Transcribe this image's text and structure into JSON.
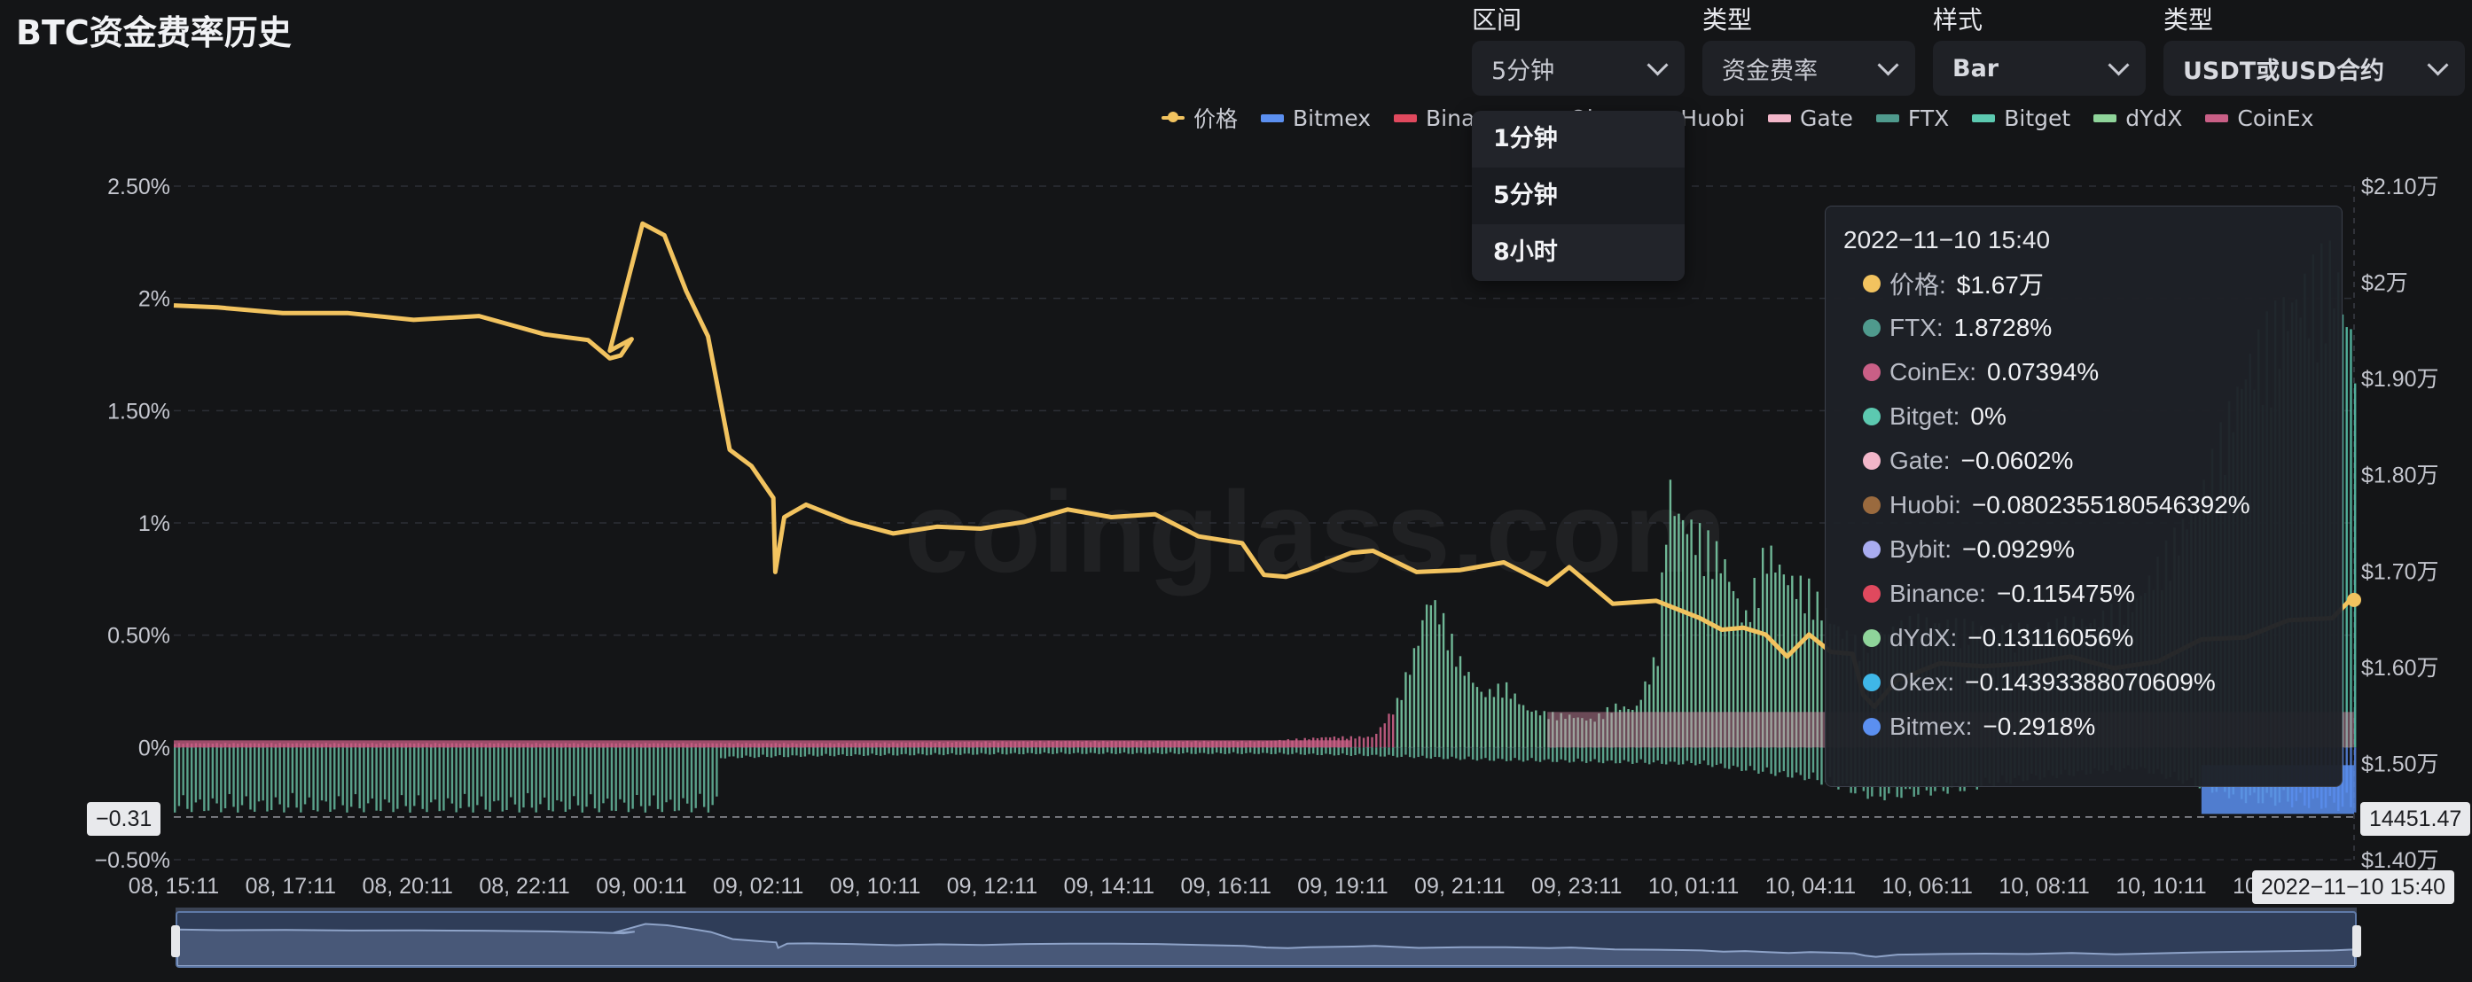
{
  "title": "BTC资金费率历史",
  "controls": [
    {
      "label": "区间",
      "value": "5分钟"
    },
    {
      "label": "类型",
      "value": "资金费率"
    },
    {
      "label": "样式",
      "value": "Bar"
    },
    {
      "label": "类型",
      "value": "USDT或USD合约"
    }
  ],
  "interval_options": [
    "1分钟",
    "5分钟",
    "8小时"
  ],
  "interval_selected_index": 1,
  "watermark": "coinglass.com",
  "legend": [
    {
      "name": "价格",
      "color": "#f2c35f",
      "kind": "line"
    },
    {
      "name": "Bitmex",
      "color": "#5b8ff0",
      "kind": "bar"
    },
    {
      "name": "Binance",
      "color": "#e0495e",
      "kind": "bar"
    },
    {
      "name": "Okex",
      "color": "#3fb7e8",
      "kind": "bar"
    },
    {
      "name": "Huobi",
      "color": "#9a6a3e",
      "kind": "bar"
    },
    {
      "name": "Gate",
      "color": "#f2b6c9",
      "kind": "bar"
    },
    {
      "name": "FTX",
      "color": "#4f9a8d",
      "kind": "bar"
    },
    {
      "name": "Bitget",
      "color": "#5cc9b0",
      "kind": "bar"
    },
    {
      "name": "dYdX",
      "color": "#8fd49a",
      "kind": "bar"
    },
    {
      "name": "CoinEx",
      "color": "#c95f86",
      "kind": "bar"
    }
  ],
  "axis_badges": {
    "left": "−0.31",
    "right": "14451.47",
    "bottom": "2022−11−10 15:40"
  },
  "tooltip": {
    "title": "2022−11−10 15:40",
    "rows": [
      {
        "name": "价格:",
        "value": "$1.67万",
        "color": "#f2c35f"
      },
      {
        "name": "FTX:",
        "value": "1.8728%",
        "color": "#4f9a8d"
      },
      {
        "name": "CoinEx:",
        "value": "0.07394%",
        "color": "#c95f86"
      },
      {
        "name": "Bitget:",
        "value": "0%",
        "color": "#5cc9b0"
      },
      {
        "name": "Gate:",
        "value": "−0.0602%",
        "color": "#f2b6c9"
      },
      {
        "name": "Huobi:",
        "value": "−0.0802355180546392%",
        "color": "#9a6a3e"
      },
      {
        "name": "Bybit:",
        "value": "−0.0929%",
        "color": "#a9acf0"
      },
      {
        "name": "Binance:",
        "value": "−0.115475%",
        "color": "#e0495e"
      },
      {
        "name": "dYdX:",
        "value": "−0.13116056%",
        "color": "#8fd49a"
      },
      {
        "name": "Okex:",
        "value": "−0.14393388070609%",
        "color": "#3fb7e8"
      },
      {
        "name": "Bitmex:",
        "value": "−0.2918%",
        "color": "#5b8ff0"
      }
    ]
  },
  "chart_data": {
    "type": "bar",
    "title": "",
    "y_left": {
      "ticks": [
        "2.50%",
        "2%",
        "1.50%",
        "1%",
        "0.50%",
        "0%",
        "−0.50%"
      ],
      "values": [
        2.5,
        2.0,
        1.5,
        1.0,
        0.5,
        0.0,
        -0.5
      ],
      "range": [
        -0.5,
        2.5
      ]
    },
    "y_right": {
      "ticks": [
        "$2.10万",
        "$2万",
        "$1.90万",
        "$1.80万",
        "$1.70万",
        "$1.60万",
        "$1.50万",
        "$1.40万"
      ],
      "values": [
        21000,
        20000,
        19000,
        18000,
        17000,
        16000,
        15000,
        14000
      ],
      "range": [
        14000,
        21000
      ]
    },
    "x_ticks": [
      "08, 15:11",
      "08, 17:11",
      "08, 20:11",
      "08, 22:11",
      "09, 00:11",
      "09, 02:11",
      "09, 10:11",
      "09, 12:11",
      "09, 14:11",
      "09, 16:11",
      "09, 19:11",
      "09, 21:11",
      "09, 23:11",
      "10, 01:11",
      "10, 04:11",
      "10, 06:11",
      "10, 08:11",
      "10, 10:11",
      "10, 13:11"
    ],
    "price_series": {
      "name": "价格",
      "x_frac": [
        0.0,
        0.02,
        0.05,
        0.08,
        0.12,
        0.16,
        0.2,
        0.23,
        0.25,
        0.265,
        0.2759,
        0.285,
        0.295,
        0.3,
        0.31,
        0.32,
        0.34,
        0.2759
      ],
      "values": [
        19800,
        19700,
        19750,
        19600,
        19650,
        19350,
        19150,
        20700,
        19900,
        18300,
        17500,
        17700,
        17200,
        17800,
        17700,
        17900,
        17500,
        17200
      ]
    },
    "price_points": [
      [
        0.0,
        19800
      ],
      [
        0.02,
        19700
      ],
      [
        0.05,
        19720
      ],
      [
        0.08,
        19640
      ],
      [
        0.11,
        19650
      ],
      [
        0.14,
        19610
      ],
      [
        0.17,
        19500
      ],
      [
        0.19,
        19360
      ],
      [
        0.2,
        19250
      ],
      [
        0.205,
        19200
      ],
      [
        0.21,
        19450
      ],
      [
        0.2,
        19250
      ],
      [
        0.215,
        20650
      ],
      [
        0.225,
        20450
      ],
      [
        0.235,
        19950
      ],
      [
        0.245,
        19400
      ],
      [
        0.255,
        18300
      ],
      [
        0.265,
        18050
      ],
      [
        0.275,
        17800
      ],
      [
        0.2759,
        16950
      ],
      [
        0.28,
        17600
      ],
      [
        0.29,
        17650
      ],
      [
        0.31,
        17550
      ],
      [
        0.33,
        17350
      ],
      [
        0.35,
        17500
      ],
      [
        0.37,
        17400
      ],
      [
        0.39,
        17550
      ],
      [
        0.41,
        17600
      ],
      [
        0.43,
        17600
      ],
      [
        0.45,
        17550
      ],
      [
        0.47,
        17400
      ],
      [
        0.49,
        17250
      ],
      [
        0.5,
        17000
      ],
      [
        0.51,
        16900
      ],
      [
        0.52,
        17050
      ],
      [
        0.54,
        17150
      ],
      [
        0.55,
        17250
      ],
      [
        0.57,
        16950
      ],
      [
        0.59,
        17050
      ],
      [
        0.61,
        17050
      ],
      [
        0.63,
        16900
      ],
      [
        0.64,
        17000
      ],
      [
        0.66,
        16700
      ],
      [
        0.68,
        16650
      ],
      [
        0.7,
        16550
      ],
      [
        0.71,
        16350
      ],
      [
        0.72,
        16450
      ],
      [
        0.73,
        16300
      ],
      [
        0.74,
        16150
      ],
      [
        0.75,
        16300
      ],
      [
        0.76,
        16200
      ],
      [
        0.77,
        16100
      ],
      [
        0.775,
        15750
      ],
      [
        0.78,
        15550
      ],
      [
        0.79,
        15900
      ],
      [
        0.81,
        16000
      ],
      [
        0.83,
        16050
      ],
      [
        0.85,
        16000
      ],
      [
        0.87,
        16150
      ],
      [
        0.89,
        15950
      ],
      [
        0.91,
        16100
      ],
      [
        0.93,
        16250
      ],
      [
        0.95,
        16350
      ],
      [
        0.97,
        16450
      ],
      [
        0.99,
        16550
      ],
      [
        1.0,
        16700
      ]
    ],
    "funding_bars": {
      "FTX": {
        "color": "#4f9a8d",
        "note": "large positive bars late in range"
      },
      "Bitget": {
        "color": "#5cc9b0"
      },
      "dYdX": {
        "color": "#8fd49a"
      },
      "CoinEx": {
        "color": "#c95f86"
      },
      "Bitmex": {
        "color": "#5b8ff0"
      }
    },
    "bar_points": [
      [
        0.0,
        0.02
      ],
      [
        0.1,
        0.02
      ],
      [
        0.2,
        0.02
      ],
      [
        0.3,
        0.02
      ],
      [
        0.4,
        0.03
      ],
      [
        0.45,
        0.03
      ],
      [
        0.5,
        0.03
      ],
      [
        0.53,
        0.05
      ],
      [
        0.55,
        0.05
      ],
      [
        0.56,
        0.2
      ],
      [
        0.57,
        0.5
      ],
      [
        0.575,
        0.72
      ],
      [
        0.58,
        0.65
      ],
      [
        0.59,
        0.4
      ],
      [
        0.6,
        0.25
      ],
      [
        0.61,
        0.3
      ],
      [
        0.62,
        0.18
      ],
      [
        0.63,
        0.16
      ],
      [
        0.64,
        0.15
      ],
      [
        0.65,
        0.13
      ],
      [
        0.66,
        0.2
      ],
      [
        0.67,
        0.18
      ],
      [
        0.68,
        0.45
      ],
      [
        0.685,
        1.25
      ],
      [
        0.69,
        1.1
      ],
      [
        0.7,
        1.0
      ],
      [
        0.71,
        0.9
      ],
      [
        0.72,
        0.6
      ],
      [
        0.73,
        0.95
      ],
      [
        0.74,
        0.8
      ],
      [
        0.75,
        0.75
      ],
      [
        0.76,
        0.6
      ],
      [
        0.77,
        0.5
      ],
      [
        0.8,
        0.6
      ],
      [
        0.84,
        0.55
      ],
      [
        0.88,
        0.6
      ],
      [
        0.9,
        0.7
      ],
      [
        0.93,
        1.2
      ],
      [
        0.95,
        1.8
      ],
      [
        0.97,
        2.1
      ],
      [
        0.99,
        2.3
      ],
      [
        1.0,
        1.87
      ]
    ],
    "neg_points": [
      [
        0.25,
        -0.05
      ],
      [
        0.3,
        -0.04
      ],
      [
        0.4,
        -0.03
      ],
      [
        0.5,
        -0.03
      ],
      [
        0.55,
        -0.04
      ],
      [
        0.6,
        -0.06
      ],
      [
        0.7,
        -0.08
      ],
      [
        0.75,
        -0.15
      ],
      [
        0.78,
        -0.24
      ],
      [
        0.82,
        -0.2
      ],
      [
        0.85,
        -0.15
      ],
      [
        0.9,
        -0.1
      ],
      [
        0.95,
        -0.25
      ],
      [
        1.0,
        -0.29
      ]
    ],
    "crosshair_value_pct": -0.31,
    "crosshair_price": 14451.47
  }
}
